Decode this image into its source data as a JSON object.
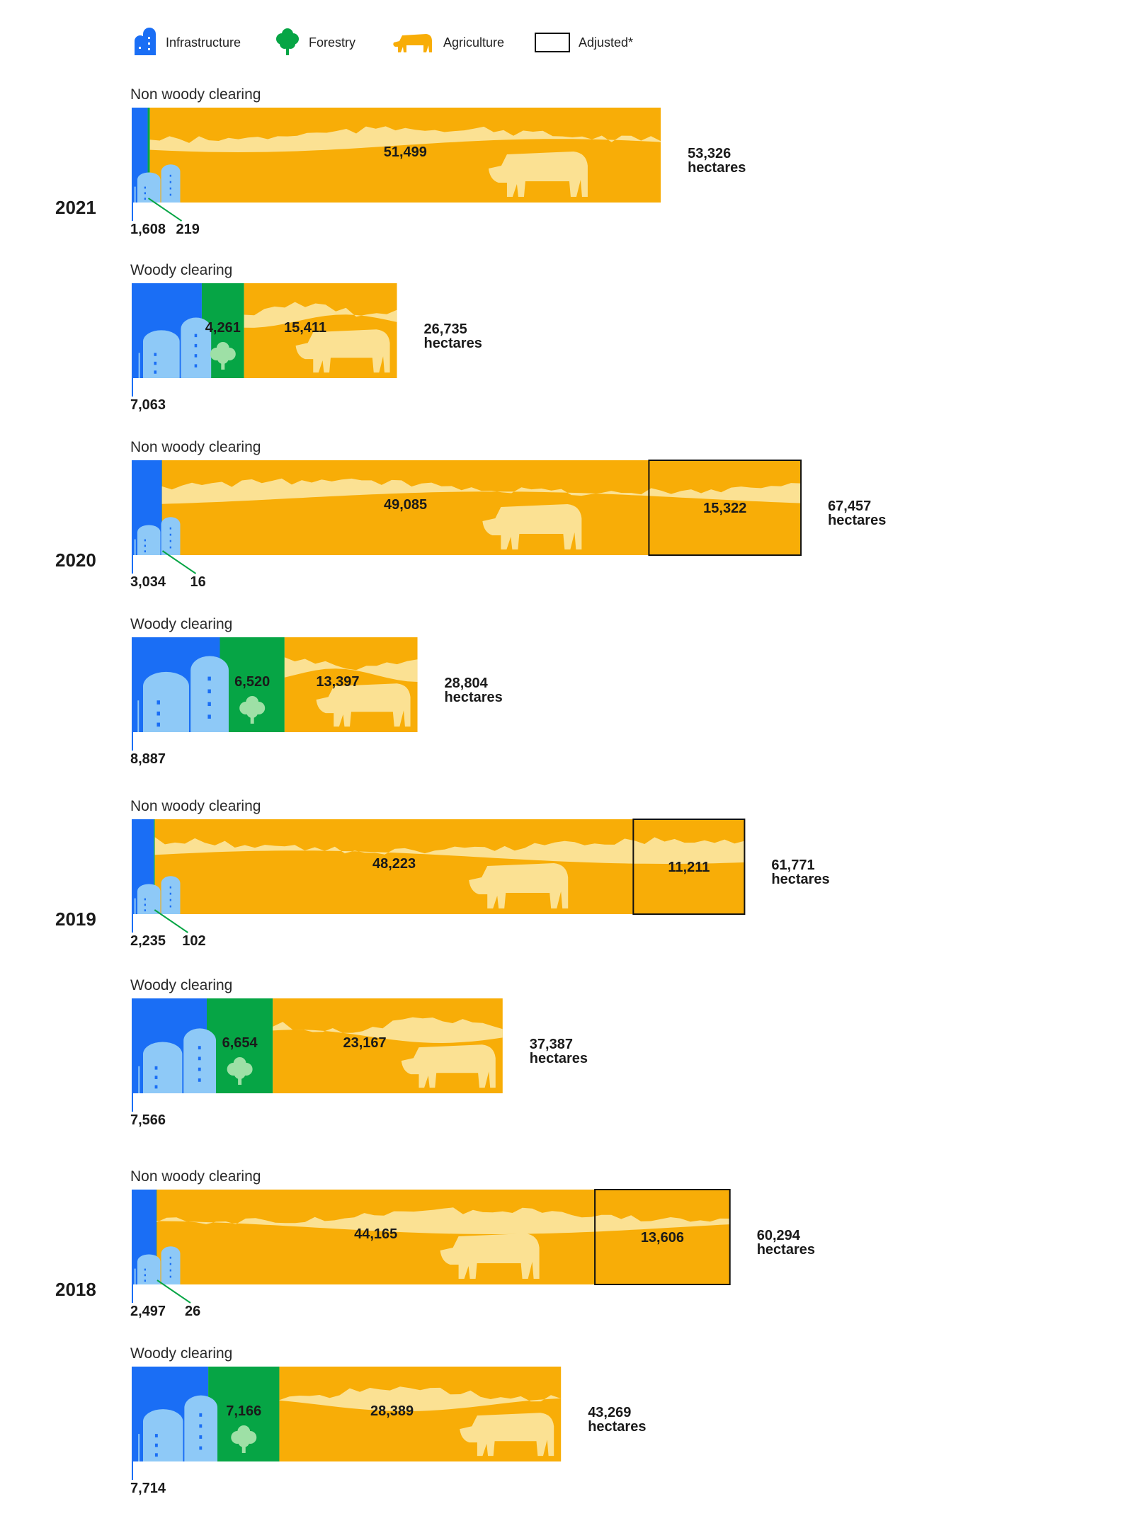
{
  "legend": {
    "infrastructure": "Infrastructure",
    "forestry": "Forestry",
    "agriculture": "Agriculture",
    "adjusted": "Adjusted*"
  },
  "colors": {
    "infrastructure": "#1a6ef5",
    "infrastructure_light": "#8ec9f7",
    "forestry": "#06a545",
    "forestry_light": "#9ee0a6",
    "agriculture": "#f8ad07",
    "agriculture_light": "#fbe193",
    "adjusted_border": "#111111"
  },
  "icons": {
    "infrastructure": "silo-icon",
    "forestry": "tree-icon",
    "agriculture": "cow-icon"
  },
  "chart_data": {
    "type": "bar",
    "orientation": "horizontal",
    "stacked": true,
    "unit": "hectares",
    "series": [
      {
        "name": "Infrastructure"
      },
      {
        "name": "Forestry"
      },
      {
        "name": "Agriculture"
      },
      {
        "name": "Adjusted*"
      }
    ],
    "groups": [
      {
        "year": "2021",
        "rows": [
          {
            "label": "Non woody clearing",
            "infrastructure": 1608,
            "forestry": 219,
            "agriculture": 51499,
            "adjusted": null,
            "total": "53,326",
            "unit": "hectares",
            "labels": {
              "infrastructure": "1,608",
              "forestry": "219",
              "agriculture": "51,499"
            }
          },
          {
            "label": "Woody clearing",
            "infrastructure": 7063,
            "forestry": 4261,
            "agriculture": 15411,
            "adjusted": null,
            "total": "26,735",
            "unit": "hectares",
            "labels": {
              "infrastructure": "7,063",
              "forestry": "4,261",
              "agriculture": "15,411"
            }
          }
        ]
      },
      {
        "year": "2020",
        "rows": [
          {
            "label": "Non woody clearing",
            "infrastructure": 3034,
            "forestry": 16,
            "agriculture": 49085,
            "adjusted": 15322,
            "total": "67,457",
            "unit": "hectares",
            "labels": {
              "infrastructure": "3,034",
              "forestry": "16",
              "agriculture": "49,085",
              "adjusted": "15,322"
            }
          },
          {
            "label": "Woody clearing",
            "infrastructure": 8887,
            "forestry": 6520,
            "agriculture": 13397,
            "adjusted": null,
            "total": "28,804",
            "unit": "hectares",
            "labels": {
              "infrastructure": "8,887",
              "forestry": "6,520",
              "agriculture": "13,397"
            }
          }
        ]
      },
      {
        "year": "2019",
        "rows": [
          {
            "label": "Non woody clearing",
            "infrastructure": 2235,
            "forestry": 102,
            "agriculture": 48223,
            "adjusted": 11211,
            "total": "61,771",
            "unit": "hectares",
            "labels": {
              "infrastructure": "2,235",
              "forestry": "102",
              "agriculture": "48,223",
              "adjusted": "11,211"
            }
          },
          {
            "label": "Woody clearing",
            "infrastructure": 7566,
            "forestry": 6654,
            "agriculture": 23167,
            "adjusted": null,
            "total": "37,387",
            "unit": "hectares",
            "labels": {
              "infrastructure": "7,566",
              "forestry": "6,654",
              "agriculture": "23,167"
            }
          }
        ]
      },
      {
        "year": "2018",
        "rows": [
          {
            "label": "Non woody clearing",
            "infrastructure": 2497,
            "forestry": 26,
            "agriculture": 44165,
            "adjusted": 13606,
            "total": "60,294",
            "unit": "hectares",
            "labels": {
              "infrastructure": "2,497",
              "forestry": "26",
              "agriculture": "44,165",
              "adjusted": "13,606"
            }
          },
          {
            "label": "Woody clearing",
            "infrastructure": 7714,
            "forestry": 7166,
            "agriculture": 28389,
            "adjusted": null,
            "total": "43,269",
            "unit": "hectares",
            "labels": {
              "infrastructure": "7,714",
              "forestry": "7,166",
              "agriculture": "28,389"
            }
          }
        ]
      }
    ]
  }
}
